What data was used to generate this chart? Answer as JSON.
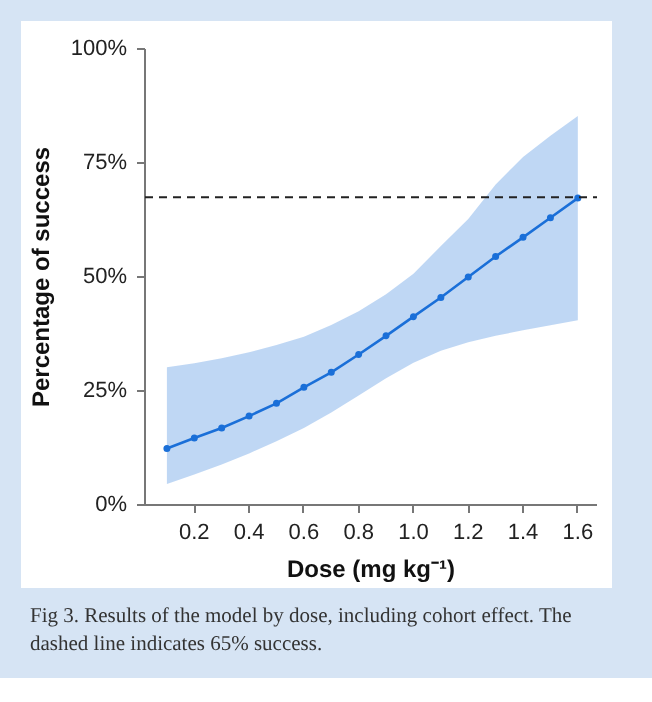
{
  "chart_data": {
    "type": "line",
    "xlabel": "Dose (mg kg⁻¹)",
    "ylabel": "Percentage of success",
    "x": [
      0.1,
      0.2,
      0.3,
      0.4,
      0.5,
      0.6,
      0.7,
      0.8,
      0.9,
      1.0,
      1.1,
      1.2,
      1.3,
      1.4,
      1.5,
      1.6
    ],
    "series": [
      {
        "color": "#1a6fd8",
        "values": [
          12.4,
          14.7,
          16.9,
          19.5,
          22.3,
          25.8,
          29.1,
          33.0,
          37.1,
          41.3,
          45.5,
          50.0,
          54.5,
          58.7,
          63.0,
          67.3
        ],
        "lower": [
          4.6,
          6.7,
          8.9,
          11.3,
          14.0,
          16.9,
          20.3,
          24.0,
          27.8,
          31.2,
          33.8,
          35.7,
          37.1,
          38.3,
          39.4,
          40.5
        ],
        "upper": [
          30.2,
          31.1,
          32.2,
          33.5,
          35.1,
          36.9,
          39.5,
          42.5,
          46.2,
          50.7,
          56.8,
          62.7,
          70.3,
          76.3,
          81.0,
          85.3
        ]
      }
    ],
    "marker": "circle",
    "line_style": "solid",
    "grid": false,
    "xlim": [
      0.02,
      1.67
    ],
    "ylim": [
      0,
      100
    ],
    "xticks": [
      {
        "value": 0.2,
        "label": "0.2"
      },
      {
        "value": 0.4,
        "label": "0.4"
      },
      {
        "value": 0.6,
        "label": "0.6"
      },
      {
        "value": 0.8,
        "label": "0.8"
      },
      {
        "value": 1.0,
        "label": "1.0"
      },
      {
        "value": 1.2,
        "label": "1.2"
      },
      {
        "value": 1.4,
        "label": "1.4"
      },
      {
        "value": 1.6,
        "label": "1.6"
      }
    ],
    "yticks": [
      {
        "value": 0,
        "label": "0%"
      },
      {
        "value": 25,
        "label": "25%"
      },
      {
        "value": 50,
        "label": "50%"
      },
      {
        "value": 75,
        "label": "75%"
      },
      {
        "value": 100,
        "label": "100%"
      }
    ],
    "ref_lines": [
      {
        "axis": "y",
        "value": 67.5,
        "label": null,
        "color": "#222222",
        "line_style": "dashed"
      }
    ],
    "annotations": [
      "Fig 3. Results of the model by dose, including cohort effect. The dashed line indicates 65% success."
    ]
  }
}
